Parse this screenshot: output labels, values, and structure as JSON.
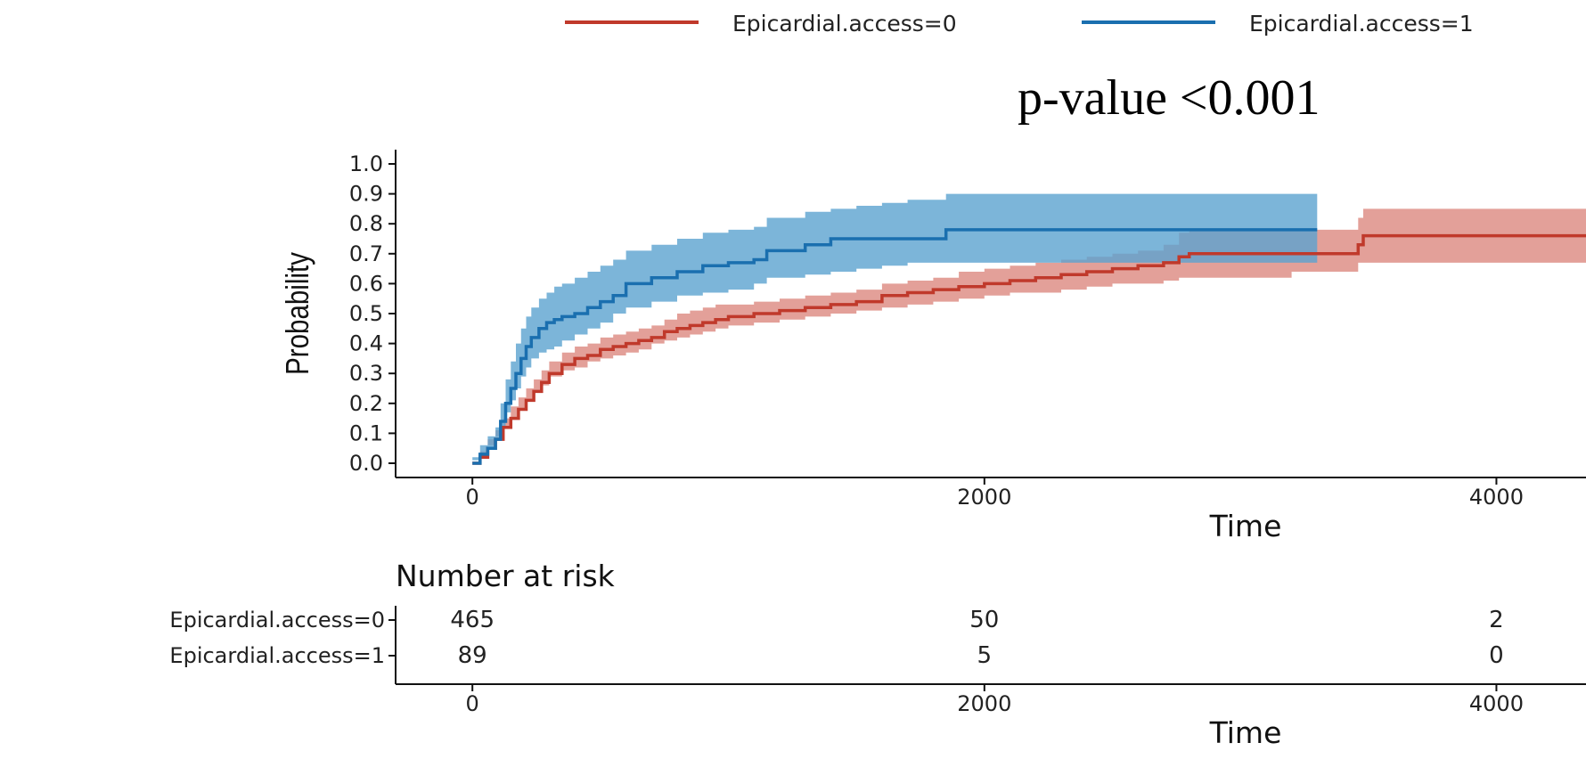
{
  "chart_data": {
    "type": "line",
    "subtype": "cumulative-incidence-step",
    "annotation": "p-value <0.001",
    "xlabel": "Time",
    "ylabel": "Probability",
    "xlim": [
      -300,
      4350
    ],
    "ylim": [
      0,
      1.0
    ],
    "x_ticks": [
      0,
      2000,
      4000
    ],
    "x_tick_labels": [
      "0",
      "2000",
      "4000"
    ],
    "y_ticks": [
      0,
      0.1,
      0.2,
      0.3,
      0.4,
      0.5,
      0.6,
      0.7,
      0.8,
      0.9,
      1.0
    ],
    "y_tick_labels": [
      "0.0",
      "0.1",
      "0.2",
      "0.3",
      "0.4",
      "0.5",
      "0.6",
      "0.7",
      "0.8",
      "0.9",
      "1.0"
    ],
    "legend_position": "top",
    "series": [
      {
        "name": "Epicardial.access=0",
        "color": "#c0392b",
        "band_color": "#d98077",
        "x": [
          0,
          30,
          60,
          90,
          120,
          150,
          180,
          210,
          240,
          270,
          300,
          350,
          400,
          450,
          500,
          550,
          600,
          650,
          700,
          750,
          800,
          850,
          900,
          950,
          1000,
          1100,
          1200,
          1300,
          1400,
          1500,
          1600,
          1700,
          1800,
          1900,
          2000,
          2100,
          2200,
          2300,
          2400,
          2500,
          2600,
          2700,
          2760,
          2800,
          3000,
          3200,
          3460,
          3480,
          4350
        ],
        "y": [
          0,
          0.02,
          0.05,
          0.08,
          0.12,
          0.15,
          0.18,
          0.21,
          0.24,
          0.27,
          0.3,
          0.33,
          0.35,
          0.36,
          0.38,
          0.39,
          0.4,
          0.41,
          0.42,
          0.44,
          0.45,
          0.46,
          0.47,
          0.48,
          0.49,
          0.5,
          0.51,
          0.52,
          0.53,
          0.54,
          0.56,
          0.57,
          0.58,
          0.59,
          0.6,
          0.61,
          0.62,
          0.63,
          0.64,
          0.65,
          0.66,
          0.67,
          0.69,
          0.7,
          0.7,
          0.7,
          0.73,
          0.76,
          0.76
        ],
        "lower": [
          0,
          0.01,
          0.03,
          0.06,
          0.09,
          0.12,
          0.15,
          0.18,
          0.21,
          0.24,
          0.26,
          0.29,
          0.31,
          0.32,
          0.34,
          0.35,
          0.36,
          0.37,
          0.38,
          0.4,
          0.41,
          0.42,
          0.43,
          0.44,
          0.45,
          0.46,
          0.47,
          0.48,
          0.49,
          0.5,
          0.51,
          0.52,
          0.53,
          0.54,
          0.55,
          0.56,
          0.57,
          0.57,
          0.58,
          0.59,
          0.6,
          0.6,
          0.61,
          0.62,
          0.62,
          0.62,
          0.64,
          0.67,
          0.67
        ],
        "upper": [
          0.01,
          0.04,
          0.08,
          0.11,
          0.15,
          0.19,
          0.22,
          0.25,
          0.28,
          0.31,
          0.34,
          0.37,
          0.39,
          0.4,
          0.42,
          0.43,
          0.44,
          0.45,
          0.46,
          0.48,
          0.5,
          0.51,
          0.52,
          0.53,
          0.53,
          0.54,
          0.55,
          0.56,
          0.57,
          0.58,
          0.6,
          0.61,
          0.62,
          0.64,
          0.65,
          0.66,
          0.67,
          0.68,
          0.69,
          0.7,
          0.71,
          0.73,
          0.77,
          0.78,
          0.78,
          0.78,
          0.82,
          0.85,
          0.85
        ]
      },
      {
        "name": "Epicardial.access=1",
        "color": "#1a6faf",
        "band_color": "#5ba3d0",
        "x": [
          0,
          30,
          60,
          90,
          110,
          130,
          150,
          170,
          190,
          210,
          230,
          260,
          290,
          320,
          350,
          400,
          450,
          500,
          550,
          600,
          700,
          800,
          900,
          1000,
          1100,
          1150,
          1300,
          1400,
          1500,
          1600,
          1700,
          1850,
          2000,
          2500,
          2800,
          3300
        ],
        "y": [
          0,
          0.03,
          0.05,
          0.08,
          0.14,
          0.2,
          0.25,
          0.3,
          0.35,
          0.39,
          0.42,
          0.45,
          0.47,
          0.48,
          0.49,
          0.5,
          0.52,
          0.54,
          0.56,
          0.6,
          0.62,
          0.64,
          0.66,
          0.67,
          0.68,
          0.71,
          0.73,
          0.75,
          0.75,
          0.75,
          0.75,
          0.78,
          0.78,
          0.78,
          0.78,
          0.78
        ],
        "lower": [
          0,
          0.01,
          0.03,
          0.05,
          0.08,
          0.12,
          0.17,
          0.21,
          0.25,
          0.29,
          0.32,
          0.35,
          0.37,
          0.38,
          0.39,
          0.41,
          0.43,
          0.45,
          0.47,
          0.5,
          0.52,
          0.54,
          0.56,
          0.57,
          0.58,
          0.6,
          0.62,
          0.63,
          0.64,
          0.65,
          0.66,
          0.67,
          0.67,
          0.67,
          0.67,
          0.67
        ],
        "upper": [
          0.02,
          0.06,
          0.09,
          0.12,
          0.2,
          0.28,
          0.34,
          0.4,
          0.45,
          0.49,
          0.52,
          0.55,
          0.57,
          0.59,
          0.6,
          0.62,
          0.64,
          0.66,
          0.68,
          0.71,
          0.73,
          0.75,
          0.77,
          0.78,
          0.79,
          0.82,
          0.84,
          0.85,
          0.86,
          0.87,
          0.88,
          0.9,
          0.9,
          0.9,
          0.9,
          0.9
        ]
      }
    ],
    "risk_table": {
      "title": "Number at risk",
      "times": [
        0,
        2000,
        4000
      ],
      "xlabel": "Time",
      "rows": [
        {
          "label": "Epicardial.access=0",
          "values": [
            "465",
            "50",
            "2"
          ]
        },
        {
          "label": "Epicardial.access=1",
          "values": [
            "89",
            "5",
            "0"
          ]
        }
      ]
    }
  }
}
